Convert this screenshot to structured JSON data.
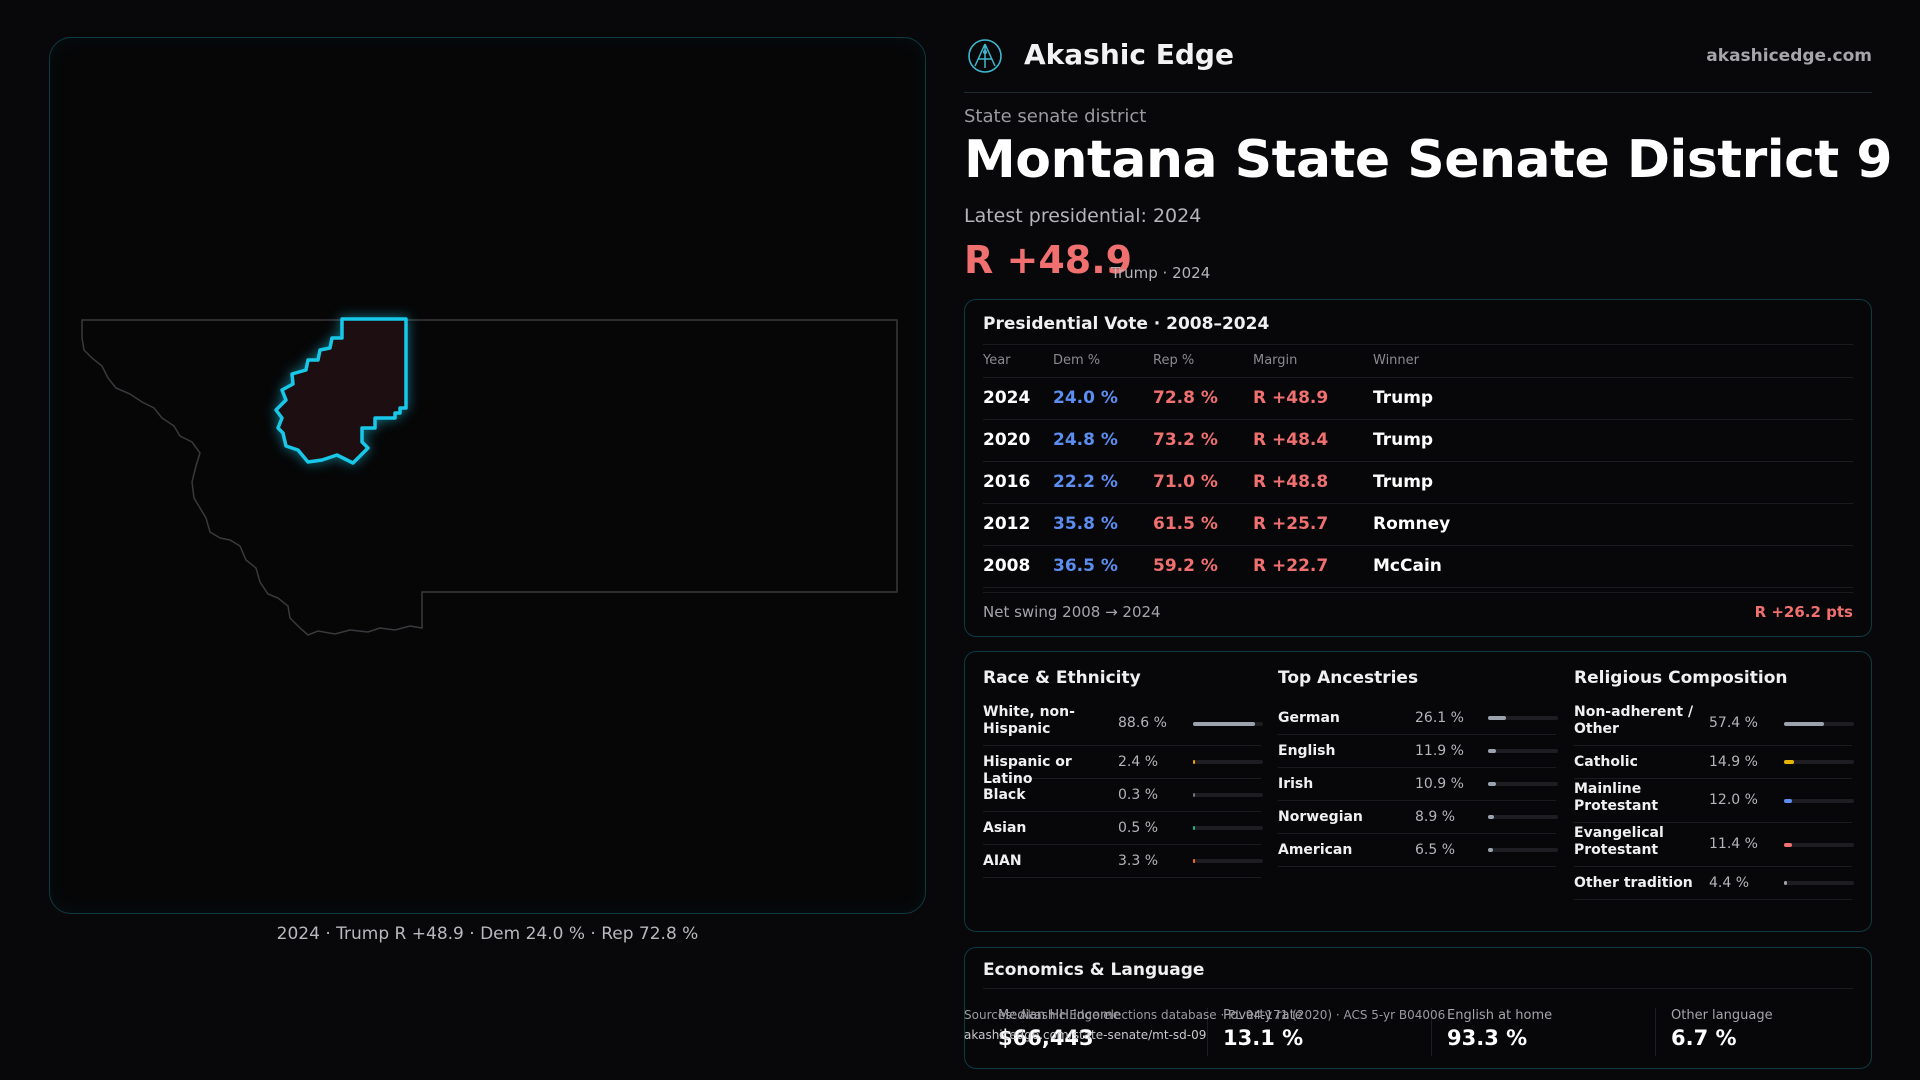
{
  "brand": {
    "name": "Akashic Edge",
    "url": "akashicedge.com"
  },
  "header": {
    "kicker": "State senate district",
    "title": "Montana State Senate District 9",
    "latest": "Latest presidential: 2024",
    "margin": "R +48.9",
    "margin_sub": "Trump · 2024"
  },
  "map": {
    "caption": "2024 · Trump R +48.9 · Dem 24.0 % · Rep 72.8 %"
  },
  "colors": {
    "dem": "#5b8ef0",
    "rep": "#f07070",
    "district_outline": "#18c8e8",
    "panel_border": "#0d3b44"
  },
  "presidential": {
    "title": "Presidential Vote · 2008–2024",
    "headers": {
      "year": "Year",
      "dem": "Dem %",
      "rep": "Rep %",
      "margin": "Margin",
      "winner": "Winner"
    },
    "rows": [
      {
        "year": "2024",
        "dem": "24.0 %",
        "rep": "72.8 %",
        "margin": "R +48.9",
        "winner": "Trump"
      },
      {
        "year": "2020",
        "dem": "24.8 %",
        "rep": "73.2 %",
        "margin": "R +48.4",
        "winner": "Trump"
      },
      {
        "year": "2016",
        "dem": "22.2 %",
        "rep": "71.0 %",
        "margin": "R +48.8",
        "winner": "Trump"
      },
      {
        "year": "2012",
        "dem": "35.8 %",
        "rep": "61.5 %",
        "margin": "R +25.7",
        "winner": "Romney"
      },
      {
        "year": "2008",
        "dem": "36.5 %",
        "rep": "59.2 %",
        "margin": "R +22.7",
        "winner": "McCain"
      }
    ],
    "swing_label": "Net swing 2008 → 2024",
    "swing_value": "R +26.2 pts"
  },
  "race": {
    "title": "Race & Ethnicity",
    "rows": [
      {
        "label": "White, non-Hispanic",
        "value": "88.6 %",
        "fraction": 0.886,
        "color": "#9ca3af"
      },
      {
        "label": "Hispanic or Latino",
        "value": "2.4 %",
        "fraction": 0.024,
        "color": "#f59e0b"
      },
      {
        "label": "Black",
        "value": "0.3 %",
        "fraction": 0.003,
        "color": "#6b7280"
      },
      {
        "label": "Asian",
        "value": "0.5 %",
        "fraction": 0.005,
        "color": "#10b981"
      },
      {
        "label": "AIAN",
        "value": "3.3 %",
        "fraction": 0.033,
        "color": "#f97316"
      }
    ]
  },
  "ancestry": {
    "title": "Top Ancestries",
    "rows": [
      {
        "label": "German",
        "value": "26.1 %",
        "fraction": 0.261,
        "color": "#9ca3af"
      },
      {
        "label": "English",
        "value": "11.9 %",
        "fraction": 0.119,
        "color": "#9ca3af"
      },
      {
        "label": "Irish",
        "value": "10.9 %",
        "fraction": 0.109,
        "color": "#9ca3af"
      },
      {
        "label": "Norwegian",
        "value": "8.9 %",
        "fraction": 0.089,
        "color": "#9ca3af"
      },
      {
        "label": "American",
        "value": "6.5 %",
        "fraction": 0.065,
        "color": "#9ca3af"
      }
    ]
  },
  "religion": {
    "title": "Religious Composition",
    "rows": [
      {
        "label": "Non-adherent / Other",
        "value": "57.4 %",
        "fraction": 0.574,
        "color": "#9ca3af"
      },
      {
        "label": "Catholic",
        "value": "14.9 %",
        "fraction": 0.149,
        "color": "#eab308"
      },
      {
        "label": "Mainline Protestant",
        "value": "12.0 %",
        "fraction": 0.12,
        "color": "#5b8ef0"
      },
      {
        "label": "Evangelical Protestant",
        "value": "11.4 %",
        "fraction": 0.114,
        "color": "#f07070"
      },
      {
        "label": "Other tradition",
        "value": "4.4 %",
        "fraction": 0.044,
        "color": "#9ca3af"
      }
    ]
  },
  "economics": {
    "title": "Economics & Language",
    "cells": [
      {
        "label": "Median HH income",
        "value": "$66,443"
      },
      {
        "label": "Poverty rate",
        "value": "13.1 %"
      },
      {
        "label": "English at home",
        "value": "93.3 %"
      },
      {
        "label": "Other language",
        "value": "6.7 %"
      }
    ]
  },
  "source": {
    "text": "Sources: Akashic Edge elections database · PL 94-171 (2020) · ACS 5-yr B04006",
    "url": "akashicedge.com/state-senate/mt-sd-09"
  }
}
